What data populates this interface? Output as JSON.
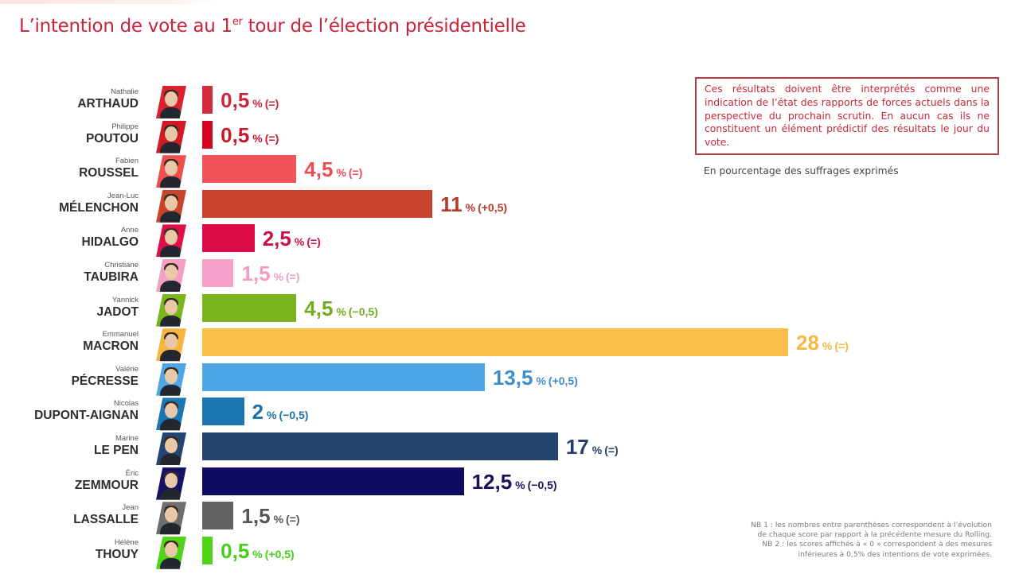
{
  "title": {
    "main_before": "L’intention de vote au 1",
    "sup": "er",
    "main_after": " tour de l’élection présidentielle"
  },
  "notice": "Ces résultats doivent être interprétés comme une indication de l’état des rapports de forces actuels dans la perspective du prochain scrutin. En aucun cas ils ne constituent un élément prédictif des résultats le jour du vote.",
  "unit_note": "En pourcentage des suffrages exprimés",
  "footnotes": [
    "NB 1 : les nombres entre parenthèses correspondent à l’évolution",
    "de chaque score par rapport à la précédente mesure du Rolling.",
    "NB 2 : les scores affichés à « 0 » correspondent à des mesures",
    "inférieures à 0,5% des intentions de vote exprimées."
  ],
  "chart_data": {
    "type": "bar",
    "orientation": "horizontal",
    "title": "L’intention de vote au 1er tour de l’élection présidentielle",
    "xlabel": "En pourcentage des suffrages exprimés",
    "ylabel": "",
    "xlim": [
      0,
      28
    ],
    "grid": false,
    "legend": "none",
    "unit_suffix": "%",
    "categories": [
      "Nathalie ARTHAUD",
      "Philippe POUTOU",
      "Fabien ROUSSEL",
      "Jean-Luc MÉLENCHON",
      "Anne HIDALGO",
      "Christiane TAUBIRA",
      "Yannick JADOT",
      "Emmanuel MACRON",
      "Valérie PÉCRESSE",
      "Nicolas DUPONT-AIGNAN",
      "Marine LE PEN",
      "Éric ZEMMOUR",
      "Jean LASSALLE",
      "Hélène THOUY"
    ],
    "values": [
      0.5,
      0.5,
      4.5,
      11,
      2.5,
      1.5,
      4.5,
      28,
      13.5,
      2,
      17,
      12.5,
      1.5,
      0.5
    ],
    "rows": [
      {
        "first": "Nathalie",
        "last": "ARTHAUD",
        "value": 0.5,
        "label": "0,5",
        "change": "(=)",
        "color": "#d42a3c",
        "text_color": "#c9263a",
        "photo_bg": "#d8232f"
      },
      {
        "first": "Philippe",
        "last": "POUTOU",
        "value": 0.5,
        "label": "0,5",
        "change": "(=)",
        "color": "#d2061f",
        "text_color": "#c9182c",
        "photo_bg": "#d21a24"
      },
      {
        "first": "Fabien",
        "last": "ROUSSEL",
        "value": 4.5,
        "label": "4,5",
        "change": "(=)",
        "color": "#f2535a",
        "text_color": "#ee4a52",
        "photo_bg": "#ef4e4e"
      },
      {
        "first": "Jean-Luc",
        "last": "MÉLENCHON",
        "value": 11,
        "label": "11",
        "change": "(+0,5)",
        "color": "#c9432d",
        "text_color": "#b53a2c",
        "photo_bg": "#c9432d"
      },
      {
        "first": "Anne",
        "last": "HIDALGO",
        "value": 2.5,
        "label": "2,5",
        "change": "(=)",
        "color": "#dd0c48",
        "text_color": "#cc1044",
        "photo_bg": "#dd1048"
      },
      {
        "first": "Christiane",
        "last": "TAUBIRA",
        "value": 1.5,
        "label": "1,5",
        "change": "(=)",
        "color": "#f6a0cb",
        "text_color": "#f49ac6",
        "photo_bg": "#f3a0c6"
      },
      {
        "first": "Yannick",
        "last": "JADOT",
        "value": 4.5,
        "label": "4,5",
        "change": "(−0,5)",
        "color": "#7ab51d",
        "text_color": "#6fae1c",
        "photo_bg": "#7ab51d"
      },
      {
        "first": "Emmanuel",
        "last": "MACRON",
        "value": 28,
        "label": "28",
        "change": "(=)",
        "color": "#fdbd49",
        "text_color": "#f7b744",
        "photo_bg": "#f6b53c"
      },
      {
        "first": "Valérie",
        "last": "PÉCRESSE",
        "value": 13.5,
        "label": "13,5",
        "change": "(+0,5)",
        "color": "#4ea6e6",
        "text_color": "#3d8ccc",
        "photo_bg": "#4ea6e6"
      },
      {
        "first": "Nicolas",
        "last": "DUPONT-AIGNAN",
        "value": 2,
        "label": "2",
        "change": "(−0,5)",
        "color": "#1d76b4",
        "text_color": "#1d72ac",
        "photo_bg": "#1d76b4"
      },
      {
        "first": "Marine",
        "last": "LE PEN",
        "value": 17,
        "label": "17",
        "change": "(=)",
        "color": "#24456f",
        "text_color": "#22406a",
        "photo_bg": "#24456f"
      },
      {
        "first": "Éric",
        "last": "ZEMMOUR",
        "value": 12.5,
        "label": "12,5",
        "change": "(−0,5)",
        "color": "#100c62",
        "text_color": "#16135c",
        "photo_bg": "#151366"
      },
      {
        "first": "Jean",
        "last": "LASSALLE",
        "value": 1.5,
        "label": "1,5",
        "change": "(=)",
        "color": "#636363",
        "text_color": "#555555",
        "photo_bg": "#6e6e6e"
      },
      {
        "first": "Hélène",
        "last": "THOUY",
        "value": 0.5,
        "label": "0,5",
        "change": "(+0,5)",
        "color": "#4fd41a",
        "text_color": "#44cf1a",
        "photo_bg": "#4fd41a"
      }
    ]
  }
}
